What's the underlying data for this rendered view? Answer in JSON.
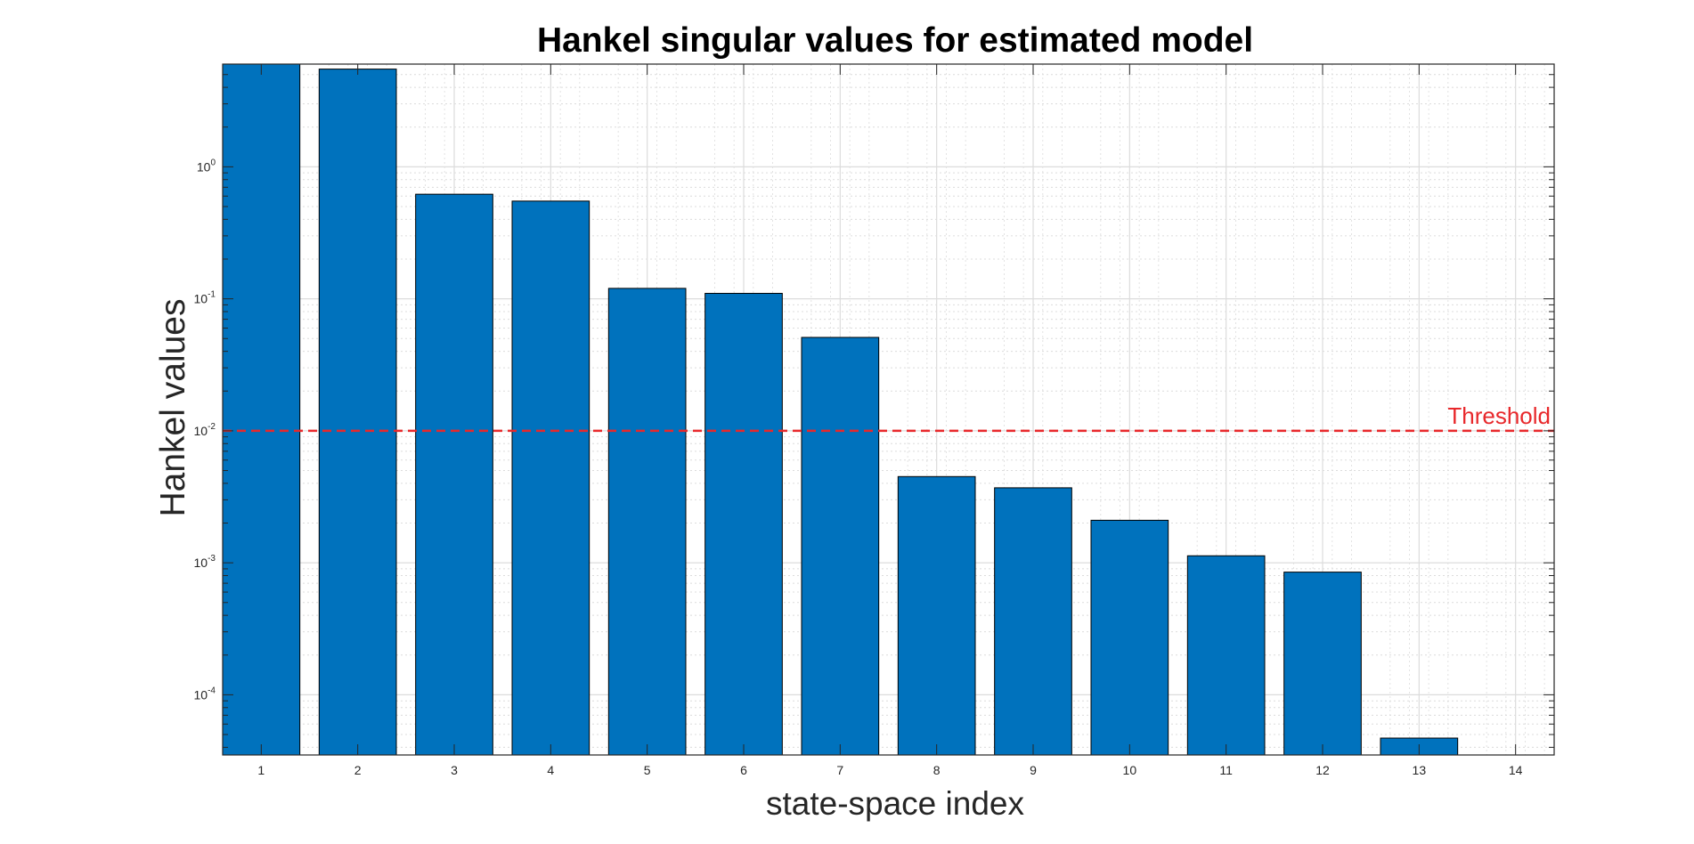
{
  "chart_data": {
    "type": "bar",
    "title": "Hankel singular values for estimated model",
    "xlabel": "state-space index",
    "ylabel": "Hankel values",
    "y_scale": "log",
    "ylim": [
      3.5e-05,
      6.0
    ],
    "xlim": [
      0.6,
      14.4
    ],
    "grid": true,
    "categories": [
      "1",
      "2",
      "3",
      "4",
      "5",
      "6",
      "7",
      "8",
      "9",
      "10",
      "11",
      "12",
      "13",
      "14"
    ],
    "values": [
      6.0,
      5.5,
      0.62,
      0.55,
      0.12,
      0.11,
      0.051,
      0.0045,
      0.0037,
      0.0021,
      0.00113,
      0.00085,
      4.7e-05,
      null
    ],
    "y_tick_values": [
      0.0001,
      0.001,
      0.01,
      0.1,
      1
    ],
    "y_ticks": [
      {
        "base": "10",
        "exp": "-4"
      },
      {
        "base": "10",
        "exp": "-3"
      },
      {
        "base": "10",
        "exp": "-2"
      },
      {
        "base": "10",
        "exp": "-1"
      },
      {
        "base": "10",
        "exp": "0"
      }
    ],
    "threshold": {
      "value": 0.01,
      "label": "Threshold",
      "color": "#e8282b"
    },
    "colors": {
      "bar": "#0072bd",
      "bar_edge": "#000000",
      "grid": "#dcdcdc",
      "axis": "#262626"
    }
  }
}
